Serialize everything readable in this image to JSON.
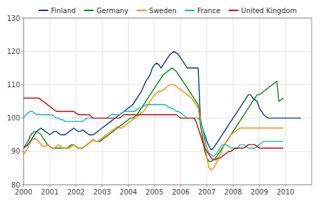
{
  "chart_data": {
    "type": "line",
    "x": [
      2000,
      2000.0833,
      2000.1667,
      2000.25,
      2000.3333,
      2000.4167,
      2000.5,
      2000.5833,
      2000.6667,
      2000.75,
      2000.8333,
      2000.9167,
      2001,
      2001.0833,
      2001.1667,
      2001.25,
      2001.3333,
      2001.4167,
      2001.5,
      2001.5833,
      2001.6667,
      2001.75,
      2001.8333,
      2001.9167,
      2002,
      2002.0833,
      2002.1667,
      2002.25,
      2002.3333,
      2002.4167,
      2002.5,
      2002.5833,
      2002.6667,
      2002.75,
      2002.8333,
      2002.9167,
      2003,
      2003.0833,
      2003.1667,
      2003.25,
      2003.3333,
      2003.4167,
      2003.5,
      2003.5833,
      2003.6667,
      2003.75,
      2003.8333,
      2003.9167,
      2004,
      2004.0833,
      2004.1667,
      2004.25,
      2004.3333,
      2004.4167,
      2004.5,
      2004.5833,
      2004.6667,
      2004.75,
      2004.8333,
      2004.9167,
      2005,
      2005.0833,
      2005.1667,
      2005.25,
      2005.3333,
      2005.4167,
      2005.5,
      2005.5833,
      2005.6667,
      2005.75,
      2005.8333,
      2005.9167,
      2006,
      2006.0833,
      2006.1667,
      2006.25,
      2006.3333,
      2006.4167,
      2006.5,
      2006.5833,
      2006.6667,
      2006.75,
      2006.8333,
      2006.9167,
      2007,
      2007.0833,
      2007.1667,
      2007.25,
      2007.3333,
      2007.4167,
      2007.5,
      2007.5833,
      2007.6667,
      2007.75,
      2007.8333,
      2007.9167,
      2008,
      2008.0833,
      2008.1667,
      2008.25,
      2008.3333,
      2008.4167,
      2008.5,
      2008.5833,
      2008.6667,
      2008.75,
      2008.8333,
      2008.9167,
      2009,
      2009.0833,
      2009.1667,
      2009.25,
      2009.3333,
      2009.4167,
      2009.5,
      2009.5833,
      2009.6667,
      2009.75,
      2009.8333,
      2009.9167,
      2010,
      2010.0833,
      2010.1667,
      2010.25,
      2010.3333,
      2010.4167,
      2010.5,
      2010.5833
    ],
    "series": [
      {
        "name": "Finland",
        "color": "#003399",
        "values": [
          91,
          91.5,
          92,
          93,
          94,
          95,
          96,
          96.5,
          97,
          96.5,
          96,
          95.5,
          95,
          95.5,
          96,
          96,
          95.5,
          95,
          95,
          95,
          95.5,
          96,
          96.5,
          97,
          96.5,
          96,
          96,
          96.5,
          96,
          95.5,
          95,
          95,
          95,
          95.5,
          96,
          96.5,
          97,
          97.5,
          98,
          98.5,
          99,
          99.5,
          100,
          100.5,
          101,
          101.5,
          102,
          102.5,
          103,
          103.5,
          104,
          105,
          106,
          107,
          108,
          109.5,
          111,
          112,
          113,
          115,
          116,
          116.5,
          116,
          115,
          116,
          117,
          118,
          119,
          119.5,
          120,
          119.5,
          119,
          118,
          117,
          116,
          115,
          115,
          115,
          115,
          115,
          115,
          100,
          97,
          95,
          93,
          91.5,
          90.5,
          91,
          92,
          93,
          94,
          95,
          96,
          97,
          98,
          99,
          100,
          101,
          102,
          103,
          104,
          105,
          106,
          107,
          107,
          106,
          105.5,
          105,
          103,
          102,
          101,
          100.5,
          100,
          100,
          100,
          100,
          100,
          100,
          100,
          100,
          100,
          100,
          100,
          100,
          100,
          100,
          100,
          100
        ]
      },
      {
        "name": "Germany",
        "color": "#008800",
        "values": [
          91,
          92,
          93,
          94.5,
          95.5,
          96,
          96,
          95.5,
          95,
          94,
          93,
          92,
          91.5,
          91,
          91,
          91,
          91,
          91,
          91,
          91,
          91,
          91.5,
          92,
          92,
          91.5,
          91,
          91,
          91,
          91.5,
          92,
          92.5,
          93,
          93.5,
          93,
          93,
          93,
          93.5,
          94,
          94.5,
          95,
          95.5,
          96,
          96.5,
          97,
          97.5,
          98,
          98.5,
          99,
          99.5,
          100,
          100,
          100.5,
          101,
          102,
          103,
          104,
          105,
          106,
          107,
          108,
          109,
          110,
          111,
          112,
          113,
          113.5,
          114,
          114.5,
          115,
          114.5,
          114,
          113,
          112,
          111,
          110,
          109,
          108,
          107,
          106,
          105,
          104,
          98,
          94,
          90,
          88,
          87,
          87,
          87.5,
          88,
          89,
          90,
          91,
          92,
          93,
          94,
          95,
          96,
          97,
          98,
          99,
          100,
          101,
          102,
          103,
          104,
          105,
          106,
          107,
          107,
          107.5,
          108,
          108.5,
          109,
          109.5,
          110,
          110.5,
          111,
          105,
          105.5,
          106,
          null,
          null,
          null,
          null,
          null,
          null,
          null,
          null
        ]
      },
      {
        "name": "Sweden",
        "color": "#ff8800",
        "values": [
          89,
          90,
          91,
          92.5,
          93.5,
          94,
          93.5,
          93,
          92,
          91.5,
          91.5,
          92,
          91.5,
          91,
          91,
          91.5,
          92,
          91.5,
          91,
          91,
          91,
          91,
          91.5,
          92,
          91.5,
          91,
          91,
          91,
          91.5,
          92,
          92.5,
          93,
          93.5,
          93,
          93,
          93.5,
          94,
          94.5,
          95,
          95.5,
          96,
          96.5,
          97,
          97.5,
          97,
          97,
          97.5,
          98,
          98.5,
          99,
          99.5,
          100,
          100.5,
          101,
          101.5,
          102,
          103,
          104,
          105,
          106,
          107,
          107.5,
          108,
          108,
          108.5,
          109,
          109.5,
          110,
          110,
          110,
          109.5,
          109,
          108.5,
          108,
          107.5,
          107,
          106.5,
          106,
          105,
          104,
          103,
          100,
          97,
          92,
          88,
          85,
          84.5,
          85,
          86,
          87.5,
          89,
          90.5,
          92,
          93,
          94,
          95,
          95.5,
          96,
          96.5,
          97,
          97,
          97,
          97,
          97,
          97,
          97,
          97,
          97,
          97,
          97,
          97,
          97,
          97,
          97,
          97,
          97,
          97,
          97,
          97,
          97,
          null,
          null,
          null,
          null,
          null,
          null,
          null,
          null
        ]
      },
      {
        "name": "France",
        "color": "#00bbcc",
        "values": [
          100,
          101,
          101.5,
          102,
          102,
          101.5,
          101,
          101,
          101,
          101,
          101,
          101,
          101,
          101,
          100.5,
          100,
          100,
          99.5,
          99.5,
          99,
          99,
          99,
          99,
          99,
          99,
          99,
          99,
          99,
          99.5,
          100,
          100,
          100,
          100,
          100,
          100,
          100,
          100,
          100,
          100,
          100.5,
          101,
          101,
          101,
          101,
          101,
          101.5,
          102,
          102,
          102,
          102,
          102,
          102,
          102.5,
          103,
          103,
          103.5,
          104,
          104,
          104,
          104,
          104,
          104,
          104,
          104,
          104,
          104,
          103.5,
          103,
          103,
          102.5,
          102,
          102,
          101.5,
          101,
          100.5,
          100,
          100,
          100,
          100,
          100,
          100,
          99,
          97,
          94,
          91,
          89.5,
          89,
          88.5,
          89,
          90,
          91,
          92,
          92,
          92,
          91.5,
          91,
          91,
          91,
          91,
          92,
          92,
          92,
          91.5,
          91,
          91,
          91,
          91,
          91.5,
          92,
          92.5,
          93,
          93,
          93,
          93,
          93,
          93,
          93,
          93,
          93,
          93,
          null,
          null,
          null,
          null,
          null,
          null,
          null,
          null
        ]
      },
      {
        "name": "United Kingdom",
        "color": "#cc0000",
        "values": [
          106,
          106,
          106,
          106,
          106,
          106,
          106,
          106,
          105.5,
          105,
          104.5,
          104,
          103.5,
          103,
          102.5,
          102,
          102,
          102,
          102,
          102,
          102,
          102,
          102,
          102,
          101.5,
          101,
          101,
          101,
          101,
          101,
          101,
          100.5,
          100,
          100,
          100,
          100,
          100,
          100,
          100,
          100,
          100,
          100,
          100,
          100,
          100,
          100.5,
          101,
          101,
          101,
          101,
          101,
          101,
          101,
          101,
          101,
          101,
          101,
          101,
          101,
          101,
          101,
          101,
          101,
          101,
          101,
          101,
          101,
          101,
          101,
          101,
          101,
          100.5,
          100,
          100,
          100,
          100,
          100,
          100,
          100,
          99,
          97,
          95,
          93,
          91,
          90,
          89,
          88,
          87.5,
          87.5,
          88,
          88,
          88.5,
          89,
          89.5,
          90,
          90,
          90.5,
          91,
          91,
          91,
          91,
          91,
          91.5,
          92,
          92,
          92,
          92,
          91.5,
          91,
          91,
          91,
          91,
          91,
          91,
          91,
          91,
          91,
          91,
          91,
          91,
          null,
          null,
          null,
          null,
          null,
          null,
          null,
          null
        ]
      }
    ],
    "xlim": [
      2000.0,
      2011.0
    ],
    "ylim": [
      80,
      130
    ],
    "xticks": [
      2000,
      2001,
      2002,
      2003,
      2004,
      2005,
      2006,
      2007,
      2008,
      2009,
      2010
    ],
    "yticks": [
      80,
      90,
      100,
      110,
      120,
      130
    ],
    "grid": true,
    "legend": "top"
  }
}
